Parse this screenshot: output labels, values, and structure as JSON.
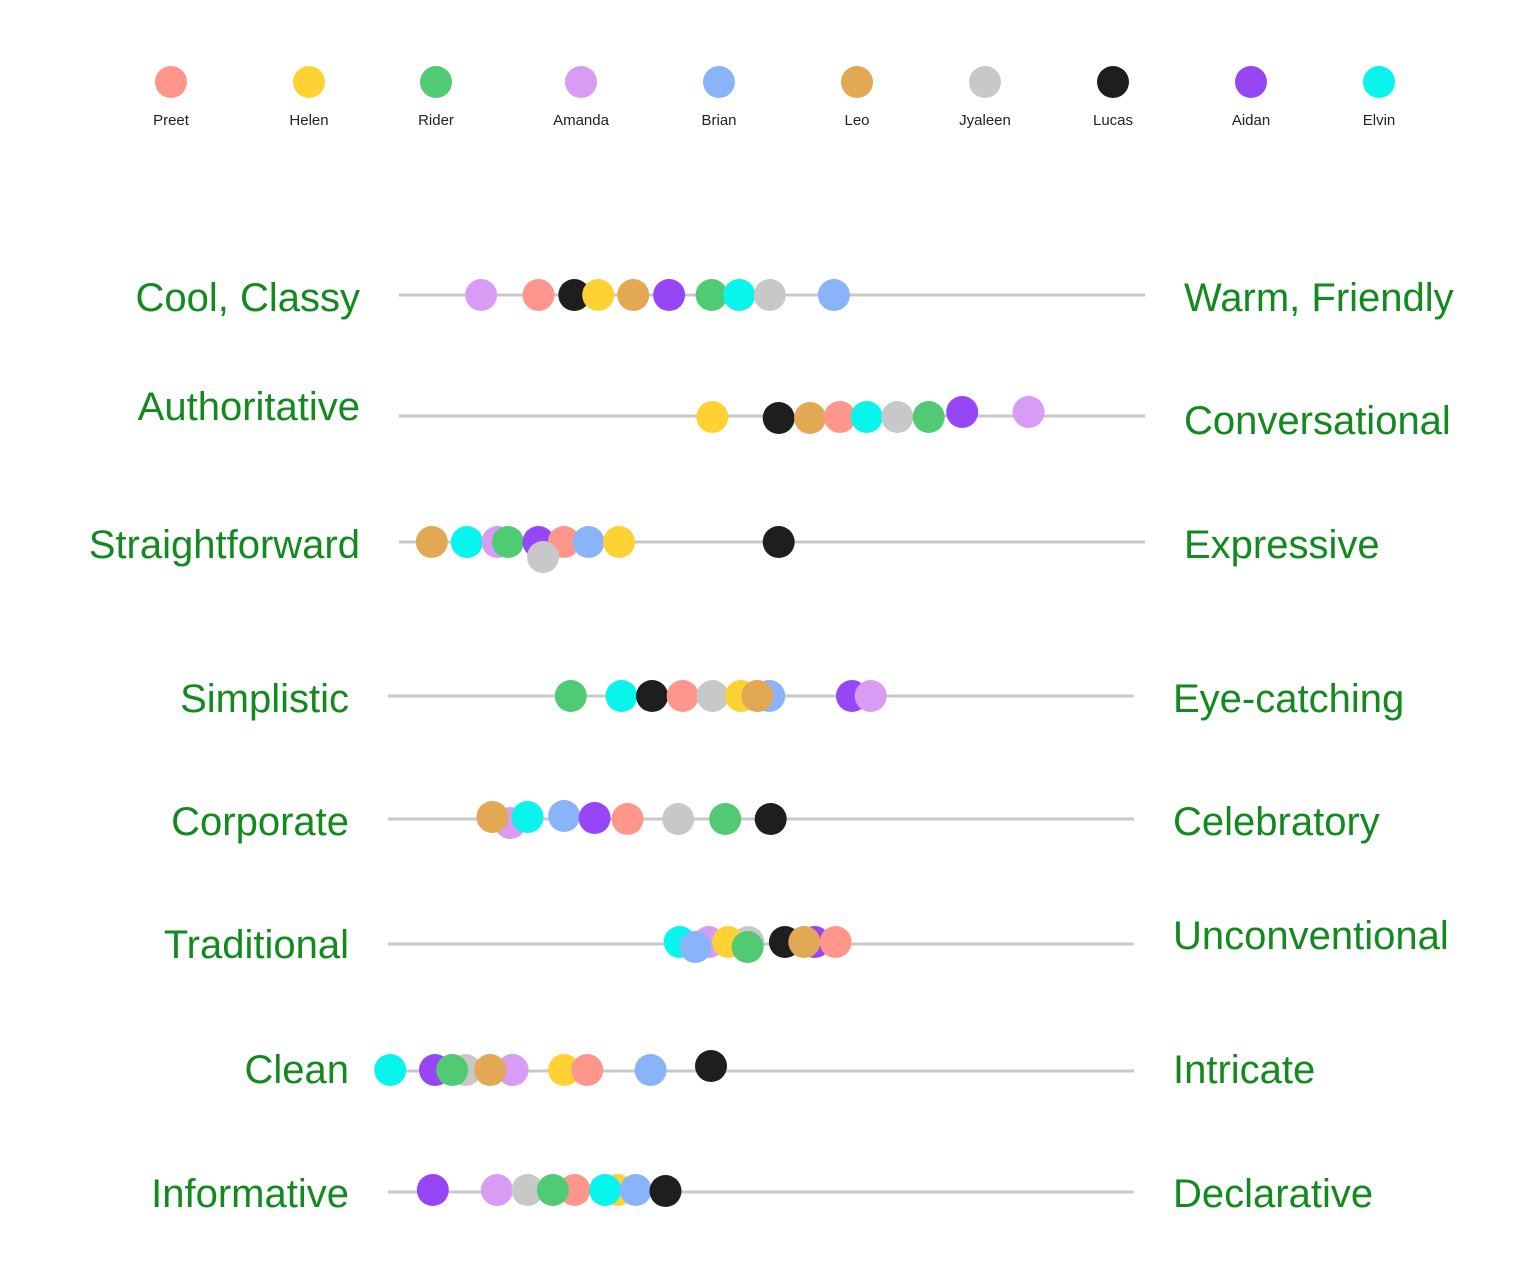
{
  "legend": [
    {
      "name": "Preet",
      "color": "#ff968c"
    },
    {
      "name": "Helen",
      "color": "#ffd234"
    },
    {
      "name": "Rider",
      "color": "#50cb73"
    },
    {
      "name": "Amanda",
      "color": "#d89cf5"
    },
    {
      "name": "Brian",
      "color": "#8ab4fa"
    },
    {
      "name": "Leo",
      "color": "#e2a853"
    },
    {
      "name": "Jyaleen",
      "color": "#c8c8c8"
    },
    {
      "name": "Lucas",
      "color": "#1e1e1e"
    },
    {
      "name": "Aidan",
      "color": "#9646f5"
    },
    {
      "name": "Elvin",
      "color": "#07f5ec"
    }
  ],
  "chart_data": {
    "type": "scatter",
    "description_scale": "position along each spectrum, 0 = left trait, 100 = right trait",
    "xlim": [
      0,
      100
    ],
    "line_color": "#c8c8c8",
    "label_color": "#138a1f",
    "rows": [
      {
        "left": "Cool, Classy",
        "right": "Warm, Friendly",
        "points": [
          {
            "person": "Amanda",
            "value": 11
          },
          {
            "person": "Preet",
            "value": 18.7
          },
          {
            "person": "Lucas",
            "value": 23.5
          },
          {
            "person": "Helen",
            "value": 26.7
          },
          {
            "person": "Leo",
            "value": 31.4
          },
          {
            "person": "Aidan",
            "value": 36.2
          },
          {
            "person": "Rider",
            "value": 41.9
          },
          {
            "person": "Elvin",
            "value": 45.6
          },
          {
            "person": "Jyaleen",
            "value": 49.7
          },
          {
            "person": "Brian",
            "value": 58.3
          }
        ]
      },
      {
        "left": "Authoritative",
        "right": "Conversational",
        "points": [
          {
            "person": "Helen",
            "value": 42
          },
          {
            "person": "Lucas",
            "value": 50.9
          },
          {
            "person": "Leo",
            "value": 55.1
          },
          {
            "person": "Preet",
            "value": 59.1
          },
          {
            "person": "Elvin",
            "value": 62.7
          },
          {
            "person": "Jyaleen",
            "value": 66.8
          },
          {
            "person": "Rider",
            "value": 71.0
          },
          {
            "person": "Aidan",
            "value": 75.5
          },
          {
            "person": "Amanda",
            "value": 84.4
          }
        ]
      },
      {
        "left": "Straightforward",
        "right": "Expressive",
        "points": [
          {
            "person": "Leo",
            "value": 4.4
          },
          {
            "person": "Elvin",
            "value": 9.1
          },
          {
            "person": "Amanda",
            "value": 13.2
          },
          {
            "person": "Rider",
            "value": 14.6
          },
          {
            "person": "Aidan",
            "value": 18.7
          },
          {
            "person": "Preet",
            "value": 22.1
          },
          {
            "person": "Jyaleen",
            "value": 19.3
          },
          {
            "person": "Brian",
            "value": 25.4
          },
          {
            "person": "Helen",
            "value": 29.5
          },
          {
            "person": "Lucas",
            "value": 50.9
          }
        ]
      },
      {
        "left": "Simplistic",
        "right": "Eye-catching",
        "points": [
          {
            "person": "Rider",
            "value": 24.5
          },
          {
            "person": "Elvin",
            "value": 31.3
          },
          {
            "person": "Lucas",
            "value": 35.4
          },
          {
            "person": "Preet",
            "value": 39.5
          },
          {
            "person": "Jyaleen",
            "value": 43.5
          },
          {
            "person": "Helen",
            "value": 47.3
          },
          {
            "person": "Brian",
            "value": 51.1
          },
          {
            "person": "Leo",
            "value": 49.5
          },
          {
            "person": "Aidan",
            "value": 62.2
          },
          {
            "person": "Amanda",
            "value": 64.7
          }
        ]
      },
      {
        "left": "Corporate",
        "right": "Celebratory",
        "points": [
          {
            "person": "Amanda",
            "value": 16.4
          },
          {
            "person": "Leo",
            "value": 14.0
          },
          {
            "person": "Elvin",
            "value": 18.7
          },
          {
            "person": "Brian",
            "value": 23.6
          },
          {
            "person": "Aidan",
            "value": 27.7
          },
          {
            "person": "Preet",
            "value": 32.1
          },
          {
            "person": "Jyaleen",
            "value": 38.9
          },
          {
            "person": "Rider",
            "value": 45.2
          },
          {
            "person": "Lucas",
            "value": 51.3
          }
        ]
      },
      {
        "left": "Traditional",
        "right": "Unconventional",
        "points": [
          {
            "person": "Elvin",
            "value": 39.1
          },
          {
            "person": "Amanda",
            "value": 43.0
          },
          {
            "person": "Jyaleen",
            "value": 48.3
          },
          {
            "person": "Helen",
            "value": 45.6
          },
          {
            "person": "Brian",
            "value": 41.2
          },
          {
            "person": "Rider",
            "value": 48.2
          },
          {
            "person": "Aidan",
            "value": 57.2
          },
          {
            "person": "Preet",
            "value": 60.0
          },
          {
            "person": "Lucas",
            "value": 53.2
          },
          {
            "person": "Leo",
            "value": 55.8
          }
        ]
      },
      {
        "left": "Clean",
        "right": "Intricate",
        "points": [
          {
            "person": "Elvin",
            "value": 0.3
          },
          {
            "person": "Aidan",
            "value": 6.3
          },
          {
            "person": "Jyaleen",
            "value": 10.4
          },
          {
            "person": "Rider",
            "value": 8.6
          },
          {
            "person": "Amanda",
            "value": 16.7
          },
          {
            "person": "Leo",
            "value": 13.7
          },
          {
            "person": "Helen",
            "value": 23.6
          },
          {
            "person": "Preet",
            "value": 26.7
          },
          {
            "person": "Brian",
            "value": 35.2
          },
          {
            "person": "Lucas",
            "value": 43.3
          }
        ]
      },
      {
        "left": "Informative",
        "right": "Declarative",
        "points": [
          {
            "person": "Aidan",
            "value": 6.0
          },
          {
            "person": "Amanda",
            "value": 14.6
          },
          {
            "person": "Jyaleen",
            "value": 18.7
          },
          {
            "person": "Preet",
            "value": 25.0
          },
          {
            "person": "Rider",
            "value": 22.1
          },
          {
            "person": "Helen",
            "value": 30.8
          },
          {
            "person": "Elvin",
            "value": 29.1
          },
          {
            "person": "Brian",
            "value": 33.2
          },
          {
            "person": "Lucas",
            "value": 37.2
          }
        ]
      }
    ]
  }
}
